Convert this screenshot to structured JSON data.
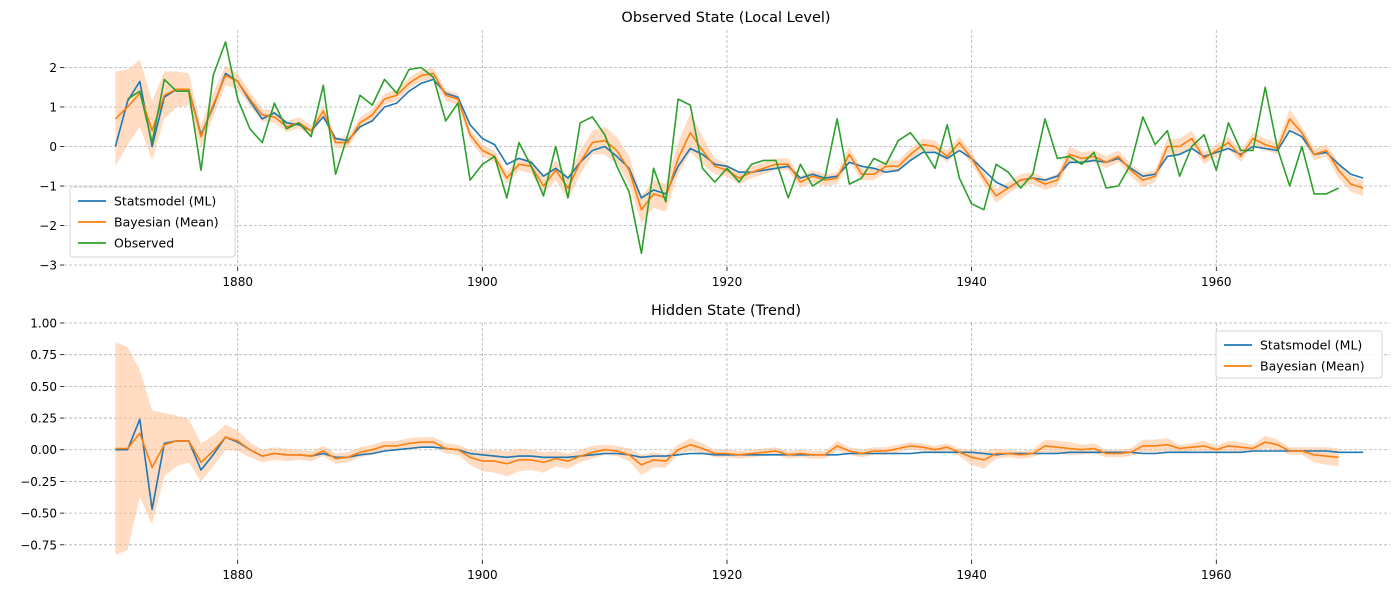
{
  "chart_data": [
    {
      "type": "line",
      "title": "Observed State (Local Level)",
      "xlabel": "",
      "ylabel": "",
      "xlim": [
        1865.8,
        1974.2
      ],
      "ylim": [
        -3.05,
        2.95
      ],
      "xticks": [
        1880,
        1900,
        1920,
        1940,
        1960
      ],
      "yticks": [
        -3,
        -2,
        -1,
        0,
        1,
        2
      ],
      "grid": true,
      "legend": "lower-left",
      "x_start": 1870,
      "series": [
        {
          "name": "Statsmodel (ML)",
          "color": "#1f77b4",
          "values": [
            0.0,
            1.15,
            1.65,
            0.0,
            1.25,
            1.45,
            1.45,
            0.3,
            1.0,
            1.85,
            1.65,
            1.15,
            0.7,
            0.85,
            0.6,
            0.55,
            0.4,
            0.75,
            0.2,
            0.15,
            0.5,
            0.65,
            1.0,
            1.1,
            1.4,
            1.6,
            1.7,
            1.35,
            1.25,
            0.55,
            0.2,
            0.05,
            -0.45,
            -0.3,
            -0.4,
            -0.75,
            -0.55,
            -0.8,
            -0.4,
            -0.1,
            0.0,
            -0.25,
            -0.55,
            -1.3,
            -1.1,
            -1.2,
            -0.5,
            -0.05,
            -0.2,
            -0.45,
            -0.5,
            -0.65,
            -0.65,
            -0.6,
            -0.55,
            -0.5,
            -0.8,
            -0.7,
            -0.8,
            -0.75,
            -0.4,
            -0.5,
            -0.55,
            -0.65,
            -0.6,
            -0.35,
            -0.15,
            -0.15,
            -0.3,
            -0.1,
            -0.3,
            -0.6,
            -0.9,
            -1.05,
            -0.85,
            -0.8,
            -0.85,
            -0.75,
            -0.4,
            -0.4,
            -0.35,
            -0.4,
            -0.3,
            -0.55,
            -0.75,
            -0.7,
            -0.25,
            -0.2,
            -0.05,
            -0.25,
            -0.15,
            -0.05,
            -0.2,
            0.0,
            -0.05,
            -0.1,
            0.4,
            0.25,
            -0.2,
            -0.15,
            -0.45,
            -0.7,
            -0.8
          ]
        },
        {
          "name": "Bayesian (Mean)",
          "color": "#ff7f0e",
          "values": [
            0.7,
            1.0,
            1.35,
            0.4,
            1.3,
            1.45,
            1.45,
            0.25,
            1.05,
            1.8,
            1.65,
            1.2,
            0.8,
            0.75,
            0.5,
            0.6,
            0.4,
            0.9,
            0.1,
            0.1,
            0.6,
            0.8,
            1.2,
            1.3,
            1.6,
            1.8,
            1.85,
            1.3,
            1.2,
            0.3,
            -0.1,
            -0.25,
            -0.8,
            -0.45,
            -0.5,
            -1.0,
            -0.6,
            -1.05,
            -0.4,
            0.1,
            0.15,
            -0.1,
            -0.6,
            -1.6,
            -1.2,
            -1.3,
            -0.3,
            0.35,
            -0.1,
            -0.5,
            -0.6,
            -0.8,
            -0.65,
            -0.55,
            -0.45,
            -0.45,
            -0.9,
            -0.75,
            -0.85,
            -0.8,
            -0.2,
            -0.7,
            -0.7,
            -0.5,
            -0.5,
            -0.2,
            0.05,
            0.0,
            -0.25,
            0.1,
            -0.3,
            -0.8,
            -1.25,
            -1.05,
            -0.85,
            -0.8,
            -0.95,
            -0.85,
            -0.2,
            -0.3,
            -0.25,
            -0.4,
            -0.25,
            -0.6,
            -0.85,
            -0.75,
            0.0,
            0.0,
            0.2,
            -0.3,
            -0.1,
            0.1,
            -0.25,
            0.2,
            0.05,
            -0.05,
            0.7,
            0.35,
            -0.2,
            -0.1,
            -0.6,
            -0.95,
            -1.05
          ]
        },
        {
          "name": "Observed",
          "color": "#2ca02c",
          "values": [
            null,
            1.2,
            1.4,
            0.1,
            1.7,
            1.4,
            1.4,
            -0.6,
            1.8,
            2.65,
            1.2,
            0.45,
            0.1,
            1.1,
            0.45,
            0.6,
            0.25,
            1.55,
            -0.7,
            0.3,
            1.3,
            1.05,
            1.7,
            1.35,
            1.95,
            2.0,
            1.75,
            0.65,
            1.1,
            -0.85,
            -0.45,
            -0.25,
            -1.3,
            0.1,
            -0.5,
            -1.25,
            0.0,
            -1.3,
            0.6,
            0.75,
            0.3,
            -0.5,
            -1.15,
            -2.7,
            -0.55,
            -1.4,
            1.2,
            1.05,
            -0.55,
            -0.9,
            -0.55,
            -0.9,
            -0.45,
            -0.35,
            -0.35,
            -1.3,
            -0.45,
            -1.0,
            -0.8,
            0.7,
            -0.95,
            -0.8,
            -0.3,
            -0.45,
            0.15,
            0.35,
            -0.05,
            -0.55,
            0.55,
            -0.8,
            -1.45,
            -1.6,
            -0.45,
            -0.65,
            -1.05,
            -0.7,
            0.7,
            -0.3,
            -0.25,
            -0.45,
            -0.15,
            -1.05,
            -1.0,
            -0.45,
            0.75,
            0.05,
            0.4,
            -0.75,
            0.0,
            0.3,
            -0.6,
            0.6,
            -0.1,
            -0.1,
            1.5,
            -0.05,
            -1.0,
            0.0,
            -1.2,
            -1.2,
            -1.05
          ]
        }
      ],
      "band": {
        "color": "#ffbf8f",
        "opacity": 0.55,
        "halfwidth": [
          1.2,
          0.95,
          0.85,
          0.75,
          0.6,
          0.45,
          0.4,
          0.3,
          0.3,
          0.25,
          0.2,
          0.18,
          0.16,
          0.15,
          0.14,
          0.14,
          0.14,
          0.14,
          0.14,
          0.14,
          0.14,
          0.14,
          0.14,
          0.14,
          0.14,
          0.14,
          0.14,
          0.14,
          0.14,
          0.14,
          0.15,
          0.15,
          0.15,
          0.15,
          0.18,
          0.2,
          0.25,
          0.3,
          0.3,
          0.3,
          0.35,
          0.35,
          0.35,
          0.35,
          0.35,
          0.35,
          0.4,
          0.5,
          0.35,
          0.2,
          0.15,
          0.15,
          0.15,
          0.15,
          0.15,
          0.15,
          0.15,
          0.15,
          0.15,
          0.15,
          0.18,
          0.15,
          0.15,
          0.15,
          0.15,
          0.15,
          0.15,
          0.15,
          0.15,
          0.15,
          0.15,
          0.15,
          0.18,
          0.15,
          0.15,
          0.15,
          0.15,
          0.15,
          0.2,
          0.15,
          0.15,
          0.15,
          0.15,
          0.15,
          0.18,
          0.15,
          0.2,
          0.2,
          0.2,
          0.15,
          0.15,
          0.15,
          0.15,
          0.15,
          0.15,
          0.15,
          0.25,
          0.15,
          0.15,
          0.15,
          0.2,
          0.2,
          0.2
        ]
      },
      "legend_entries": [
        {
          "label": "Statsmodel (ML)",
          "color": "#1f77b4"
        },
        {
          "label": "Bayesian (Mean)",
          "color": "#ff7f0e"
        },
        {
          "label": "Observed",
          "color": "#2ca02c"
        }
      ]
    },
    {
      "type": "line",
      "title": "Hidden State (Trend)",
      "xlabel": "",
      "ylabel": "",
      "xlim": [
        1865.8,
        1974.2
      ],
      "ylim": [
        -0.87,
        1.0
      ],
      "xticks": [
        1880,
        1900,
        1920,
        1940,
        1960
      ],
      "yticks": [
        -0.75,
        -0.5,
        -0.25,
        0.0,
        0.25,
        0.5,
        0.75,
        1.0
      ],
      "ytick_labels": [
        "−0.75",
        "−0.50",
        "−0.25",
        "0.00",
        "0.25",
        "0.50",
        "0.75",
        "1.00"
      ],
      "grid": true,
      "legend": "upper-right",
      "x_start": 1870,
      "series": [
        {
          "name": "Statsmodel (ML)",
          "color": "#1f77b4",
          "values": [
            0.0,
            0.0,
            0.24,
            -0.47,
            0.05,
            0.07,
            0.07,
            -0.16,
            -0.04,
            0.1,
            0.06,
            0.0,
            -0.05,
            -0.03,
            -0.04,
            -0.04,
            -0.05,
            -0.03,
            -0.06,
            -0.06,
            -0.04,
            -0.03,
            -0.01,
            0.0,
            0.01,
            0.02,
            0.02,
            0.01,
            0.0,
            -0.03,
            -0.04,
            -0.05,
            -0.06,
            -0.05,
            -0.05,
            -0.06,
            -0.06,
            -0.06,
            -0.05,
            -0.04,
            -0.03,
            -0.03,
            -0.04,
            -0.06,
            -0.05,
            -0.05,
            -0.04,
            -0.03,
            -0.03,
            -0.04,
            -0.04,
            -0.04,
            -0.04,
            -0.04,
            -0.04,
            -0.04,
            -0.04,
            -0.04,
            -0.04,
            -0.04,
            -0.03,
            -0.03,
            -0.03,
            -0.03,
            -0.03,
            -0.03,
            -0.02,
            -0.02,
            -0.02,
            -0.02,
            -0.02,
            -0.03,
            -0.04,
            -0.03,
            -0.03,
            -0.03,
            -0.03,
            -0.03,
            -0.02,
            -0.02,
            -0.02,
            -0.02,
            -0.02,
            -0.02,
            -0.03,
            -0.03,
            -0.02,
            -0.02,
            -0.02,
            -0.02,
            -0.02,
            -0.02,
            -0.02,
            -0.01,
            -0.01,
            -0.01,
            -0.01,
            -0.01,
            -0.01,
            -0.01,
            -0.02,
            -0.02,
            -0.02
          ]
        },
        {
          "name": "Bayesian (Mean)",
          "color": "#ff7f0e",
          "values": [
            0.01,
            0.01,
            0.13,
            -0.14,
            0.04,
            0.07,
            0.07,
            -0.1,
            -0.01,
            0.1,
            0.07,
            0.0,
            -0.05,
            -0.03,
            -0.04,
            -0.04,
            -0.05,
            -0.01,
            -0.07,
            -0.06,
            -0.02,
            0.0,
            0.03,
            0.03,
            0.05,
            0.06,
            0.06,
            0.01,
            0.0,
            -0.06,
            -0.09,
            -0.09,
            -0.11,
            -0.08,
            -0.08,
            -0.1,
            -0.07,
            -0.09,
            -0.05,
            -0.02,
            0.0,
            -0.01,
            -0.04,
            -0.12,
            -0.08,
            -0.09,
            0.0,
            0.04,
            0.01,
            -0.03,
            -0.03,
            -0.04,
            -0.03,
            -0.02,
            -0.01,
            -0.04,
            -0.03,
            -0.04,
            -0.04,
            0.03,
            -0.01,
            -0.03,
            -0.01,
            -0.01,
            0.01,
            0.03,
            0.02,
            0.0,
            0.02,
            -0.02,
            -0.06,
            -0.08,
            -0.03,
            -0.03,
            -0.04,
            -0.03,
            0.03,
            0.02,
            0.01,
            0.0,
            0.01,
            -0.03,
            -0.03,
            -0.02,
            0.03,
            0.03,
            0.04,
            0.01,
            0.02,
            0.03,
            0.0,
            0.03,
            0.02,
            0.01,
            0.06,
            0.04,
            -0.01,
            -0.01,
            -0.04,
            -0.05,
            -0.06
          ]
        }
      ],
      "band": {
        "color": "#ffbf8f",
        "opacity": 0.55,
        "halfwidth": [
          0.84,
          0.8,
          0.5,
          0.45,
          0.25,
          0.2,
          0.17,
          0.15,
          0.12,
          0.1,
          0.08,
          0.06,
          0.05,
          0.05,
          0.05,
          0.04,
          0.04,
          0.04,
          0.04,
          0.04,
          0.04,
          0.04,
          0.04,
          0.04,
          0.04,
          0.04,
          0.04,
          0.04,
          0.04,
          0.06,
          0.08,
          0.09,
          0.1,
          0.09,
          0.08,
          0.08,
          0.06,
          0.06,
          0.05,
          0.05,
          0.04,
          0.04,
          0.05,
          0.08,
          0.06,
          0.05,
          0.04,
          0.05,
          0.04,
          0.03,
          0.03,
          0.03,
          0.03,
          0.03,
          0.03,
          0.03,
          0.03,
          0.03,
          0.03,
          0.04,
          0.03,
          0.03,
          0.03,
          0.03,
          0.03,
          0.03,
          0.03,
          0.03,
          0.03,
          0.03,
          0.06,
          0.07,
          0.04,
          0.03,
          0.03,
          0.03,
          0.05,
          0.05,
          0.05,
          0.04,
          0.04,
          0.03,
          0.03,
          0.03,
          0.05,
          0.05,
          0.05,
          0.03,
          0.03,
          0.04,
          0.03,
          0.04,
          0.04,
          0.03,
          0.05,
          0.04,
          0.03,
          0.03,
          0.06,
          0.07,
          0.07
        ]
      },
      "legend_entries": [
        {
          "label": "Statsmodel (ML)",
          "color": "#1f77b4"
        },
        {
          "label": "Bayesian (Mean)",
          "color": "#ff7f0e"
        }
      ]
    }
  ]
}
